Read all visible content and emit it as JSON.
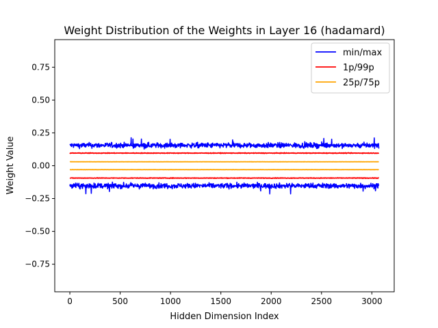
{
  "chart_data": {
    "type": "line",
    "title": "Weight Distribution of the Weights in Layer 16 (hadamard)",
    "xlabel": "Hidden Dimension Index",
    "ylabel": "Weight Value",
    "xlim": [
      -150,
      3222
    ],
    "ylim": [
      -0.96,
      0.96
    ],
    "xticks": [
      0,
      500,
      1000,
      1500,
      2000,
      2500,
      3000
    ],
    "yticks": [
      -0.75,
      -0.5,
      -0.25,
      0.0,
      0.25,
      0.5,
      0.75
    ],
    "ytick_labels": [
      "−0.75",
      "−0.50",
      "−0.25",
      "0.00",
      "0.25",
      "0.50",
      "0.75"
    ],
    "xtick_labels": [
      "0",
      "500",
      "1000",
      "1500",
      "2000",
      "2500",
      "3000"
    ],
    "grid": false,
    "legend": {
      "placement": "top-right",
      "entries": [
        "min/max",
        "1p/99p",
        "25p/75p"
      ]
    },
    "n_points": 3072,
    "series": [
      {
        "name": "min/max",
        "color": "#0000ff",
        "upper": {
          "mean": 0.155,
          "noise": 0.016,
          "peak": 0.215
        },
        "lower": {
          "mean": -0.153,
          "noise": 0.016,
          "peak": -0.215
        }
      },
      {
        "name": "1p/99p",
        "color": "#ff0000",
        "upper": {
          "mean": 0.096,
          "noise": 0.002
        },
        "lower": {
          "mean": -0.094,
          "noise": 0.002
        }
      },
      {
        "name": "25p/75p",
        "color": "#ffa500",
        "upper": {
          "mean": 0.03,
          "noise": 0.0006
        },
        "lower": {
          "mean": -0.03,
          "noise": 0.0006
        }
      }
    ]
  }
}
